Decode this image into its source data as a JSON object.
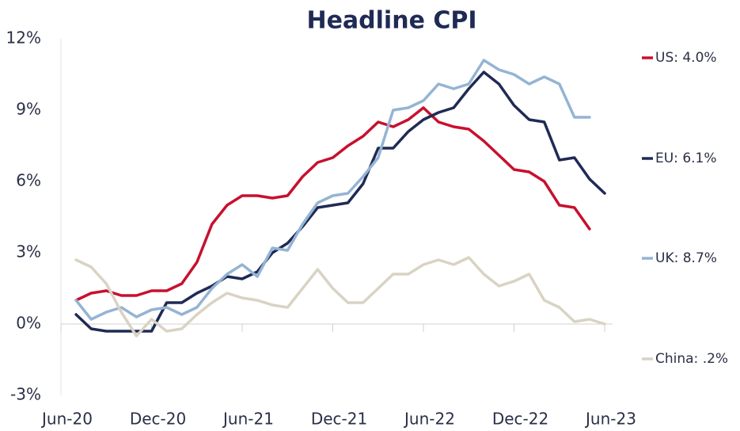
{
  "chart_data": {
    "type": "line",
    "title": "Headline CPI",
    "categories": [
      "Jun-20",
      null,
      null,
      null,
      null,
      null,
      "Dec-20",
      null,
      null,
      null,
      null,
      null,
      "Jun-21",
      null,
      null,
      null,
      null,
      null,
      "Dec-21",
      null,
      null,
      null,
      null,
      null,
      "Jun-22",
      null,
      null,
      null,
      null,
      null,
      "Dec-22",
      null,
      null,
      null,
      null,
      null,
      "Jun-23"
    ],
    "series": [
      {
        "name": "US: 4.0%",
        "color": "#c8102e",
        "values": [
          null,
          1.0,
          1.3,
          1.4,
          1.2,
          1.2,
          1.4,
          1.4,
          1.7,
          2.6,
          4.2,
          5.0,
          5.4,
          5.4,
          5.3,
          5.4,
          6.2,
          6.8,
          7.0,
          7.5,
          7.9,
          8.5,
          8.3,
          8.6,
          9.1,
          8.5,
          8.3,
          8.2,
          7.7,
          7.1,
          6.5,
          6.4,
          6.0,
          5.0,
          4.9,
          4.0,
          null
        ]
      },
      {
        "name": "EU: 6.1%",
        "color": "#1f2a55",
        "values": [
          null,
          0.4,
          -0.2,
          -0.3,
          -0.3,
          -0.3,
          -0.3,
          0.9,
          0.9,
          1.3,
          1.6,
          2.0,
          1.9,
          2.2,
          3.0,
          3.4,
          4.1,
          4.9,
          5.0,
          5.1,
          5.9,
          7.4,
          7.4,
          8.1,
          8.6,
          8.9,
          9.1,
          9.9,
          10.6,
          10.1,
          9.2,
          8.6,
          8.5,
          6.9,
          7.0,
          6.1,
          5.5
        ]
      },
      {
        "name": "UK: 8.7%",
        "color": "#94b4d4",
        "values": [
          null,
          1.0,
          0.2,
          0.5,
          0.7,
          0.3,
          0.6,
          0.7,
          0.4,
          0.7,
          1.5,
          2.1,
          2.5,
          2.0,
          3.2,
          3.1,
          4.2,
          5.1,
          5.4,
          5.5,
          6.2,
          7.0,
          9.0,
          9.1,
          9.4,
          10.1,
          9.9,
          10.1,
          11.1,
          10.7,
          10.5,
          10.1,
          10.4,
          10.1,
          8.7,
          8.7,
          null
        ]
      },
      {
        "name": "China: .2%",
        "color": "#d9d3c3",
        "values": [
          null,
          2.7,
          2.4,
          1.7,
          0.5,
          -0.5,
          0.2,
          -0.3,
          -0.2,
          0.4,
          0.9,
          1.3,
          1.1,
          1.0,
          0.8,
          0.7,
          1.5,
          2.3,
          1.5,
          0.9,
          0.9,
          1.5,
          2.1,
          2.1,
          2.5,
          2.7,
          2.5,
          2.8,
          2.1,
          1.6,
          1.8,
          2.1,
          1.0,
          0.7,
          0.1,
          0.2,
          0.0
        ]
      }
    ],
    "ylim": [
      -3,
      12
    ],
    "yticks": [
      {
        "value": -3,
        "label": "-3%"
      },
      {
        "value": 0,
        "label": "0%"
      },
      {
        "value": 3,
        "label": "3%"
      },
      {
        "value": 6,
        "label": "6%"
      },
      {
        "value": 9,
        "label": "9%"
      },
      {
        "value": 12,
        "label": "12%"
      }
    ],
    "grid": false
  }
}
